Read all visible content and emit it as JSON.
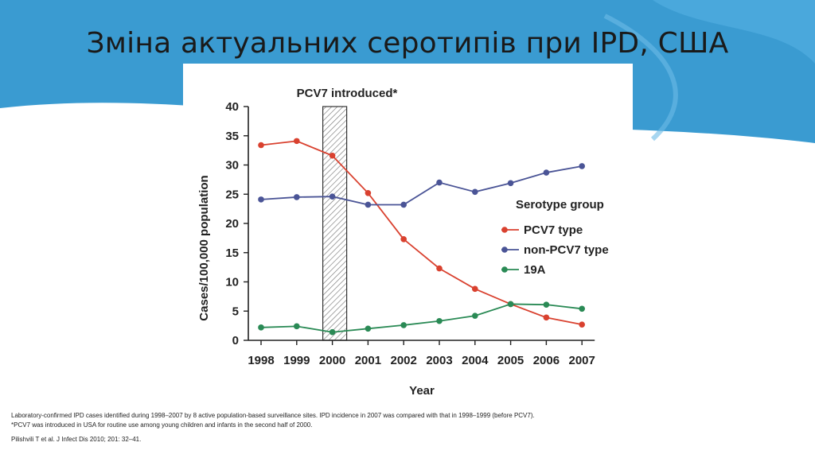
{
  "slide": {
    "title": "Зміна актуальних серотипів при IPD, США",
    "colors": {
      "band": "#3a9bd1",
      "band_light": "#5fb2e0",
      "background": "#ffffff",
      "text": "#1a1a1a"
    }
  },
  "chart_data": {
    "type": "line",
    "title": "",
    "xlabel": "Year",
    "ylabel": "Cases/100,000 population",
    "categories": [
      "1998",
      "1999",
      "2000",
      "2001",
      "2002",
      "2003",
      "2004",
      "2005",
      "2006",
      "2007"
    ],
    "ylim": [
      0,
      40
    ],
    "yticks": [
      "0",
      "5",
      "10",
      "15",
      "20",
      "25",
      "30",
      "35",
      "40"
    ],
    "grid": false,
    "legend": {
      "title": "Serotype group",
      "placement": "right"
    },
    "annotation": {
      "text": "PCV7 introduced*",
      "year": "2000"
    },
    "series": [
      {
        "name": "PCV7 type",
        "color": "#d9412f",
        "values": [
          33.4,
          34.1,
          31.6,
          25.2,
          17.3,
          12.3,
          8.8,
          6.2,
          3.9,
          2.7
        ]
      },
      {
        "name": "non-PCV7 type",
        "color": "#4a5496",
        "values": [
          24.1,
          24.5,
          24.6,
          23.2,
          23.2,
          27.0,
          25.4,
          26.9,
          28.7,
          29.8
        ]
      },
      {
        "name": "19A",
        "color": "#2a8a55",
        "values": [
          2.2,
          2.4,
          1.4,
          2.0,
          2.6,
          3.3,
          4.2,
          6.2,
          6.1,
          5.4
        ]
      }
    ]
  },
  "footnotes": {
    "line1": "Laboratory-confirmed IPD cases identified during 1998–2007 by 8 active population-based surveillance sites. IPD incidence in 2007 was compared with that in 1998–1999 (before PCV7).",
    "line2": "*PCV7 was introduced in USA for routine use among young children and infants in the second half of 2000.",
    "citation": "Pilishvili T et al. J Infect Dis 2010; 201: 32–41."
  }
}
